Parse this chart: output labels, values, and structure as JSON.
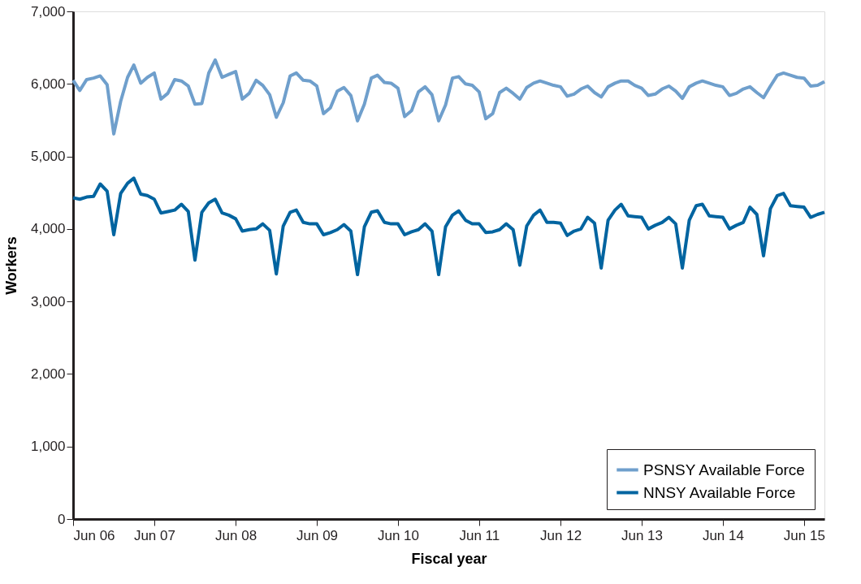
{
  "chart_data": {
    "type": "line",
    "xlabel": "Fiscal year",
    "ylabel": "Workers",
    "x": [
      "2006-06",
      "2006-07",
      "2006-08",
      "2006-09",
      "2006-10",
      "2006-11",
      "2006-12",
      "2007-01",
      "2007-02",
      "2007-03",
      "2007-04",
      "2007-05",
      "2007-06",
      "2007-07",
      "2007-08",
      "2007-09",
      "2007-10",
      "2007-11",
      "2007-12",
      "2008-01",
      "2008-02",
      "2008-03",
      "2008-04",
      "2008-05",
      "2008-06",
      "2008-07",
      "2008-08",
      "2008-09",
      "2008-10",
      "2008-11",
      "2008-12",
      "2009-01",
      "2009-02",
      "2009-03",
      "2009-04",
      "2009-05",
      "2009-06",
      "2009-07",
      "2009-08",
      "2009-09",
      "2009-10",
      "2009-11",
      "2009-12",
      "2010-01",
      "2010-02",
      "2010-03",
      "2010-04",
      "2010-05",
      "2010-06",
      "2010-07",
      "2010-08",
      "2010-09",
      "2010-10",
      "2010-11",
      "2010-12",
      "2011-01",
      "2011-02",
      "2011-03",
      "2011-04",
      "2011-05",
      "2011-06",
      "2011-07",
      "2011-08",
      "2011-09",
      "2011-10",
      "2011-11",
      "2011-12",
      "2012-01",
      "2012-02",
      "2012-03",
      "2012-04",
      "2012-05",
      "2012-06",
      "2012-07",
      "2012-08",
      "2012-09",
      "2012-10",
      "2012-11",
      "2012-12",
      "2013-01",
      "2013-02",
      "2013-03",
      "2013-04",
      "2013-05",
      "2013-06",
      "2013-07",
      "2013-08",
      "2013-09",
      "2013-10",
      "2013-11",
      "2013-12",
      "2014-01",
      "2014-02",
      "2014-03",
      "2014-04",
      "2014-05",
      "2014-06",
      "2014-07",
      "2014-08",
      "2014-09",
      "2014-10",
      "2014-11",
      "2014-12",
      "2015-01",
      "2015-02",
      "2015-03",
      "2015-04",
      "2015-05",
      "2015-06",
      "2015-07",
      "2015-08",
      "2015-09"
    ],
    "series": [
      {
        "name": "PSNSY Available Force",
        "color": "#6f9fcc",
        "values": [
          6050,
          5910,
          6060,
          6080,
          6110,
          5990,
          5310,
          5760,
          6090,
          6260,
          6010,
          6090,
          6150,
          5790,
          5870,
          6060,
          6040,
          5970,
          5720,
          5730,
          6150,
          6330,
          6090,
          6130,
          6170,
          5790,
          5870,
          6050,
          5980,
          5850,
          5540,
          5740,
          6110,
          6150,
          6050,
          6040,
          5970,
          5590,
          5670,
          5900,
          5950,
          5840,
          5490,
          5720,
          6080,
          6120,
          6020,
          6010,
          5940,
          5550,
          5630,
          5890,
          5960,
          5850,
          5490,
          5710,
          6080,
          6100,
          6000,
          5980,
          5890,
          5520,
          5590,
          5880,
          5940,
          5870,
          5790,
          5950,
          6010,
          6040,
          6010,
          5980,
          5960,
          5830,
          5860,
          5930,
          5970,
          5880,
          5820,
          5960,
          6010,
          6040,
          6040,
          5980,
          5940,
          5840,
          5860,
          5930,
          5970,
          5900,
          5800,
          5960,
          6010,
          6040,
          6010,
          5980,
          5960,
          5840,
          5870,
          5930,
          5960,
          5880,
          5810,
          5970,
          6120,
          6150,
          6120,
          6090,
          6080,
          5970,
          5980,
          6030
        ]
      },
      {
        "name": "NNSY Available Force",
        "color": "#0064a0",
        "values": [
          4430,
          4410,
          4440,
          4450,
          4620,
          4520,
          3920,
          4490,
          4630,
          4700,
          4480,
          4460,
          4410,
          4220,
          4240,
          4260,
          4340,
          4240,
          3570,
          4230,
          4360,
          4410,
          4220,
          4190,
          4140,
          3970,
          3990,
          4000,
          4070,
          3980,
          3380,
          4040,
          4230,
          4260,
          4090,
          4070,
          4070,
          3920,
          3950,
          3990,
          4060,
          3970,
          3370,
          4030,
          4230,
          4250,
          4090,
          4070,
          4070,
          3920,
          3960,
          3990,
          4070,
          3970,
          3370,
          4030,
          4190,
          4250,
          4120,
          4070,
          4070,
          3950,
          3960,
          3990,
          4070,
          3990,
          3500,
          4040,
          4190,
          4260,
          4090,
          4090,
          4080,
          3910,
          3970,
          4000,
          4160,
          4080,
          3460,
          4120,
          4260,
          4340,
          4180,
          4170,
          4160,
          4000,
          4050,
          4090,
          4160,
          4070,
          3460,
          4120,
          4320,
          4340,
          4180,
          4170,
          4160,
          4000,
          4050,
          4090,
          4300,
          4200,
          3630,
          4280,
          4460,
          4490,
          4320,
          4310,
          4300,
          4160,
          4200,
          4230
        ]
      }
    ],
    "xlim": [
      "2006-06",
      "2015-09"
    ],
    "xticks": [
      {
        "value": "2006-06",
        "label": "Jun 06"
      },
      {
        "value": "2007-06",
        "label": "Jun 07"
      },
      {
        "value": "2008-06",
        "label": "Jun 08"
      },
      {
        "value": "2009-06",
        "label": "Jun 09"
      },
      {
        "value": "2010-06",
        "label": "Jun 10"
      },
      {
        "value": "2011-06",
        "label": "Jun 11"
      },
      {
        "value": "2012-06",
        "label": "Jun 12"
      },
      {
        "value": "2013-06",
        "label": "Jun 13"
      },
      {
        "value": "2014-06",
        "label": "Jun 14"
      },
      {
        "value": "2015-06",
        "label": "Jun 15"
      }
    ],
    "ylim": [
      0,
      7000
    ],
    "yticks": [
      0,
      {
        "value": 1000,
        "label": "1,000"
      },
      {
        "value": 2000,
        "label": "2,000"
      },
      {
        "value": 3000,
        "label": "3,000"
      },
      {
        "value": 4000,
        "label": "4,000"
      },
      {
        "value": 5000,
        "label": "5,000"
      },
      {
        "value": 6000,
        "label": "6,000"
      },
      {
        "value": 7000,
        "label": "7,000"
      }
    ],
    "grid": false,
    "legend": "bottom right",
    "marker": "none",
    "line_style": "solid"
  }
}
